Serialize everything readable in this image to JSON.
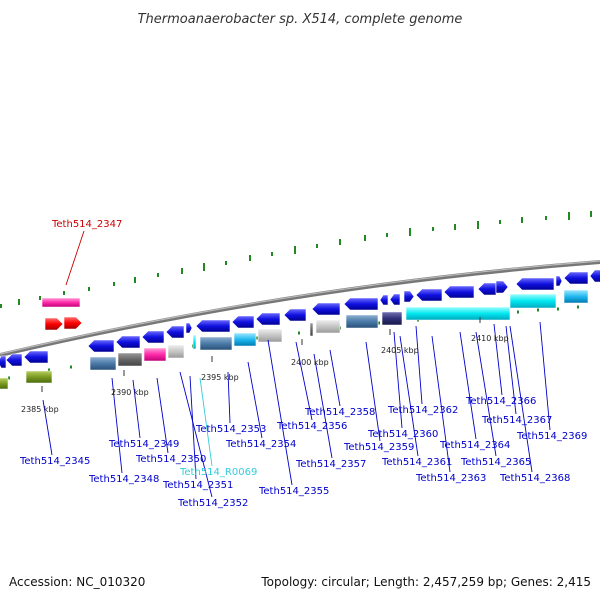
{
  "title": "Thermoanaerobacter sp. X514, complete genome",
  "accession": "Accession: NC_010320",
  "topology": "Topology: circular; Length: 2,457,259 bp; Genes: 2,415",
  "colors": {
    "label": "#0000cc",
    "label_highlight": "#cc0000",
    "label_rna": "#33ccdd",
    "backbone": "#888888",
    "tick": "#228822"
  },
  "kbp_marks": [
    {
      "text": "2385 kbp"
    },
    {
      "text": "2390 kbp"
    },
    {
      "text": "2395 kbp"
    },
    {
      "text": "2400 kbp"
    },
    {
      "text": "2405 kbp"
    },
    {
      "text": "2410 kbp"
    }
  ],
  "gene_labels": [
    {
      "text": "Teth514_2347",
      "kind": "highlight"
    },
    {
      "text": "Teth514_2345",
      "kind": "normal"
    },
    {
      "text": "Teth514_2348",
      "kind": "normal"
    },
    {
      "text": "Teth514_2349",
      "kind": "normal"
    },
    {
      "text": "Teth514_2350",
      "kind": "normal"
    },
    {
      "text": "Teth514_R0069",
      "kind": "rna"
    },
    {
      "text": "Teth514_2351",
      "kind": "normal"
    },
    {
      "text": "Teth514_2352",
      "kind": "normal"
    },
    {
      "text": "Teth514_2353",
      "kind": "normal"
    },
    {
      "text": "Teth514_2354",
      "kind": "normal"
    },
    {
      "text": "Teth514_2355",
      "kind": "normal"
    },
    {
      "text": "Teth514_2356",
      "kind": "normal"
    },
    {
      "text": "Teth514_2357",
      "kind": "normal"
    },
    {
      "text": "Teth514_2358",
      "kind": "normal"
    },
    {
      "text": "Teth514_2359",
      "kind": "normal"
    },
    {
      "text": "Teth514_2360",
      "kind": "normal"
    },
    {
      "text": "Teth514_2361",
      "kind": "normal"
    },
    {
      "text": "Teth514_2362",
      "kind": "normal"
    },
    {
      "text": "Teth514_2363",
      "kind": "normal"
    },
    {
      "text": "Teth514_2364",
      "kind": "normal"
    },
    {
      "text": "Teth514_2365",
      "kind": "normal"
    },
    {
      "text": "Teth514_2366",
      "kind": "normal"
    },
    {
      "text": "Teth514_2367",
      "kind": "normal"
    },
    {
      "text": "Teth514_2368",
      "kind": "normal"
    },
    {
      "text": "Teth514_2369",
      "kind": "normal"
    }
  ]
}
